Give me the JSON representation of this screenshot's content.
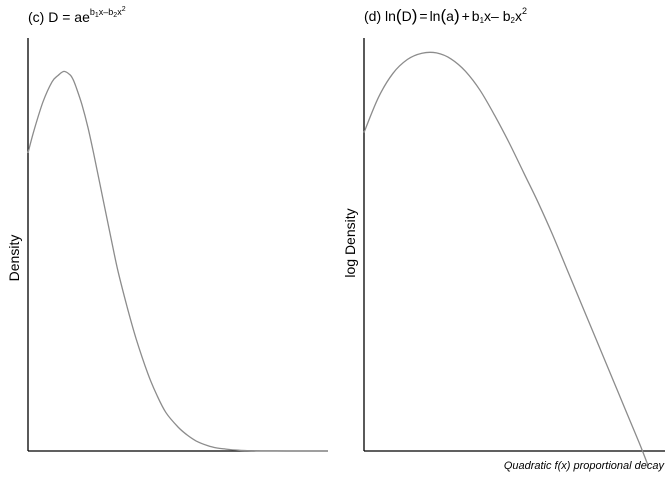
{
  "chart_data": [
    {
      "type": "line",
      "panel": "(c)",
      "title": {
        "prefix": "(c) D = ae",
        "exponent": {
          "b": "b",
          "sub1": "1",
          "mid": "x–b",
          "sub2": "2",
          "x": "x",
          "pow": "2"
        }
      },
      "xlabel": "",
      "ylabel": "Density",
      "axes": {
        "x_ticks": false,
        "y_ticks": false,
        "grid": false
      },
      "xlim": [
        0,
        1
      ],
      "ylim": [
        0,
        1.1
      ],
      "series": [
        {
          "color": "#8c8c8c",
          "x": [
            0,
            0.02,
            0.05,
            0.08,
            0.1,
            0.12,
            0.14,
            0.15,
            0.16,
            0.18,
            0.2,
            0.22,
            0.25,
            0.28,
            0.3,
            0.33,
            0.36,
            0.4,
            0.43,
            0.46,
            0.5,
            0.53,
            0.56,
            0.6,
            0.63,
            0.66,
            0.7,
            0.73,
            0.76,
            0.8,
            0.83,
            0.86,
            0.9,
            0.93,
            0.96,
            1.0
          ],
          "y": [
            0.794,
            0.854,
            0.93,
            0.983,
            1.0,
            1.011,
            1.002,
            0.99,
            0.97,
            0.922,
            0.861,
            0.788,
            0.671,
            0.554,
            0.479,
            0.385,
            0.3,
            0.205,
            0.148,
            0.102,
            0.064,
            0.043,
            0.027,
            0.014,
            0.008,
            0.005,
            0.002,
            0.001,
            0.0006,
            0.0003,
            0.0002,
            0.0001,
            0.0,
            0.0,
            0.0,
            0.0
          ]
        }
      ]
    },
    {
      "type": "line",
      "panel": "(d)",
      "title": {
        "lead": "(d) ln",
        "D": "D",
        "eq": "=",
        "ln2": "ln",
        "a": "a",
        "plus": "+",
        "b1": "b",
        "s1": "1",
        "mid": "x– b",
        "s2": "2",
        "x": "x",
        "pow": "2"
      },
      "xlabel": "",
      "ylabel": "log Density",
      "axes": {
        "x_ticks": false,
        "y_ticks": false,
        "grid": false
      },
      "xlim": [
        0,
        1
      ],
      "ylim": [
        -8,
        0.3
      ],
      "series": [
        {
          "color": "#8c8c8c",
          "x": [
            0,
            0.05,
            0.1,
            0.15,
            0.2,
            0.25,
            0.3,
            0.35,
            0.4,
            0.45,
            0.5,
            0.55,
            0.6,
            0.65,
            0.7,
            0.75,
            0.8,
            0.85,
            0.9,
            0.95,
            0.98
          ],
          "y": [
            -1.6,
            -0.891,
            -0.41,
            -0.13,
            -0.005,
            0.0,
            -0.12,
            -0.37,
            -0.75,
            -1.25,
            -1.8,
            -2.4,
            -3.0,
            -3.65,
            -4.35,
            -5.05,
            -5.75,
            -6.45,
            -7.15,
            -7.85,
            -8.3
          ]
        }
      ]
    }
  ],
  "caption": "Quadratic f(x) proportional decay"
}
